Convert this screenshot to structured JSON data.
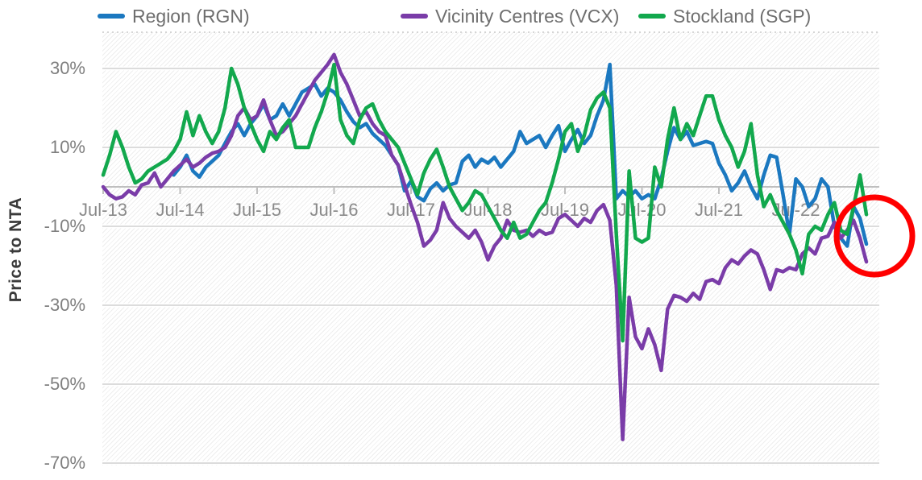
{
  "page": {
    "background": "#ffffff"
  },
  "x_axis": {
    "tick_labels": [
      "Jul-13",
      "Jul-14",
      "Jul-15",
      "Jul-16",
      "Jul-17",
      "Jul-18",
      "Jul-19",
      "Jul-20",
      "Jul-21",
      "Jul-22"
    ]
  },
  "y_axis": {
    "title": "Price to NTA",
    "tick_labels": [
      "30%",
      "10%",
      "-10%",
      "-30%",
      "-50%",
      "-70%"
    ],
    "tick_values": [
      30,
      10,
      -10,
      -30,
      -50,
      -70
    ]
  },
  "annotation": {
    "shape": "ellipse",
    "color": "#FF0000",
    "location": "end-of-series",
    "purpose": "highlights latest data points"
  },
  "chart_data": {
    "type": "line",
    "title": "",
    "xlabel": "",
    "ylabel": "Price to NTA",
    "unit": "%",
    "frequency": "monthly",
    "grid": "horizontal",
    "legend_position": "top",
    "ylim": [
      -70,
      35
    ],
    "y_ticks": [
      30,
      10,
      -10,
      -30,
      -50,
      -70
    ],
    "x_tick_labels": [
      "Jul-13",
      "Jul-14",
      "Jul-15",
      "Jul-16",
      "Jul-17",
      "Jul-18",
      "Jul-19",
      "Jul-20",
      "Jul-21",
      "Jul-22"
    ],
    "x": [
      "Jul-13",
      "Aug-13",
      "Sep-13",
      "Oct-13",
      "Nov-13",
      "Dec-13",
      "Jan-14",
      "Feb-14",
      "Mar-14",
      "Apr-14",
      "May-14",
      "Jun-14",
      "Jul-14",
      "Aug-14",
      "Sep-14",
      "Oct-14",
      "Nov-14",
      "Dec-14",
      "Jan-15",
      "Feb-15",
      "Mar-15",
      "Apr-15",
      "May-15",
      "Jun-15",
      "Jul-15",
      "Aug-15",
      "Sep-15",
      "Oct-15",
      "Nov-15",
      "Dec-15",
      "Jan-16",
      "Feb-16",
      "Mar-16",
      "Apr-16",
      "May-16",
      "Jun-16",
      "Jul-16",
      "Aug-16",
      "Sep-16",
      "Oct-16",
      "Nov-16",
      "Dec-16",
      "Jan-17",
      "Feb-17",
      "Mar-17",
      "Apr-17",
      "May-17",
      "Jun-17",
      "Jul-17",
      "Aug-17",
      "Sep-17",
      "Oct-17",
      "Nov-17",
      "Dec-17",
      "Jan-18",
      "Feb-18",
      "Mar-18",
      "Apr-18",
      "May-18",
      "Jun-18",
      "Jul-18",
      "Aug-18",
      "Sep-18",
      "Oct-18",
      "Nov-18",
      "Dec-18",
      "Jan-19",
      "Feb-19",
      "Mar-19",
      "Apr-19",
      "May-19",
      "Jun-19",
      "Jul-19",
      "Aug-19",
      "Sep-19",
      "Oct-19",
      "Nov-19",
      "Dec-19",
      "Jan-20",
      "Feb-20",
      "Mar-20",
      "Apr-20",
      "May-20",
      "Jun-20",
      "Jul-20",
      "Aug-20",
      "Sep-20",
      "Oct-20",
      "Nov-20",
      "Dec-20",
      "Jan-21",
      "Feb-21",
      "Mar-21",
      "Apr-21",
      "May-21",
      "Jun-21",
      "Jul-21",
      "Aug-21",
      "Sep-21",
      "Oct-21",
      "Nov-21",
      "Dec-21",
      "Jan-22",
      "Feb-22",
      "Mar-22",
      "Apr-22",
      "May-22",
      "Jun-22",
      "Jul-22",
      "Aug-22",
      "Sep-22",
      "Oct-22",
      "Nov-22",
      "Dec-22",
      "Jan-23",
      "Feb-23",
      "Mar-23",
      "Apr-23",
      "May-23",
      "Jun-23"
    ],
    "series": [
      {
        "name": "Region (RGN)",
        "color": "#1B78C0",
        "values": [
          null,
          null,
          null,
          null,
          null,
          null,
          null,
          null,
          null,
          null,
          null,
          3,
          5,
          8,
          4,
          2.5,
          5,
          6.5,
          8,
          11,
          14,
          16,
          13,
          16,
          18,
          21,
          17,
          18,
          21,
          18,
          21,
          24,
          25,
          26,
          23,
          25,
          24,
          22,
          19,
          16.5,
          15,
          16,
          13.5,
          12,
          10.5,
          8,
          5.5,
          -1,
          1.5,
          -2.5,
          -3.5,
          -0.5,
          1,
          -1,
          0.5,
          1,
          6.5,
          8,
          5,
          7,
          6,
          7.5,
          5,
          7,
          9,
          14,
          11,
          12,
          13,
          10,
          13,
          15.5,
          9,
          12,
          14.5,
          11,
          13,
          18,
          22,
          31,
          -3,
          -1,
          -2.5,
          -1,
          -3,
          -2,
          -3,
          2,
          9,
          15,
          12,
          14,
          10.5,
          11,
          11.5,
          11,
          6,
          3,
          -1,
          1,
          4,
          0,
          -3,
          3,
          8,
          7.5,
          -2,
          -12,
          2,
          0,
          -5,
          -3,
          2,
          0,
          -10,
          -13,
          -15,
          -5,
          -8,
          -14.5
        ]
      },
      {
        "name": "Vicinity Centres (VCX)",
        "color": "#7A3CA8",
        "values": [
          0,
          -2,
          -3,
          -2.5,
          -1,
          -2,
          0.5,
          1,
          3.5,
          0,
          2,
          4,
          5.5,
          7,
          5,
          6,
          7.5,
          8.5,
          9,
          10,
          13,
          18,
          20,
          17,
          18,
          22,
          17,
          13,
          14,
          16,
          18,
          21,
          24,
          27,
          29,
          31,
          33.5,
          29,
          26,
          22,
          18,
          19,
          16,
          14,
          13,
          8,
          5.5,
          0.5,
          -4.5,
          -9,
          -15,
          -13.5,
          -11,
          -4,
          -8,
          -10,
          -11.5,
          -13,
          -11,
          -14,
          -18.5,
          -15,
          -13,
          -8.5,
          -11,
          -11.5,
          -11,
          -12.5,
          -11,
          -12,
          -11.5,
          -8,
          -7,
          -8.5,
          -10,
          -8,
          -9,
          -6,
          -4.5,
          -8.5,
          -25,
          -64,
          -28,
          -38,
          -41,
          -36,
          -40,
          -46.5,
          -31,
          -27.5,
          -28,
          -29,
          -27,
          -28.5,
          -24,
          -23.5,
          -24.5,
          -20.5,
          -18.5,
          -19.5,
          -17.5,
          -16,
          -17,
          -21,
          -26,
          -21,
          -21.5,
          -20.5,
          -21,
          -17,
          -15.5,
          -17,
          -13,
          -12.5,
          -9,
          -13,
          -11,
          -8.5,
          -13,
          -19
        ]
      },
      {
        "name": "Stockland (SGP)",
        "color": "#12A84D",
        "values": [
          3,
          8,
          14,
          10,
          5,
          1,
          2,
          4,
          5,
          6,
          7,
          9,
          12,
          19,
          13,
          18,
          14,
          11,
          14,
          20,
          30,
          26,
          20,
          16,
          12,
          9,
          14,
          12,
          15,
          17,
          10,
          10,
          10,
          15,
          19,
          24,
          31,
          17,
          13,
          11,
          17,
          20,
          21,
          17,
          14,
          12,
          10,
          6,
          2,
          -2,
          3.5,
          7,
          9.5,
          5,
          0,
          -3,
          -6,
          -4,
          -1,
          -2,
          -5,
          -8,
          -11,
          -13,
          -9,
          -13,
          -12,
          -9,
          -6,
          -4,
          1,
          7,
          14,
          16,
          9,
          13,
          19.5,
          22.5,
          24,
          20,
          -12,
          -39,
          4,
          -13,
          -14,
          -13,
          5,
          0,
          12,
          20,
          12,
          16,
          13,
          18,
          23,
          23,
          17,
          13,
          10,
          5,
          9,
          16,
          3,
          -5,
          -2,
          -6,
          -9,
          -12,
          -16,
          -22,
          -12,
          -10,
          -11,
          -7,
          -4,
          -11,
          -12,
          -5,
          3,
          -7
        ]
      }
    ]
  }
}
